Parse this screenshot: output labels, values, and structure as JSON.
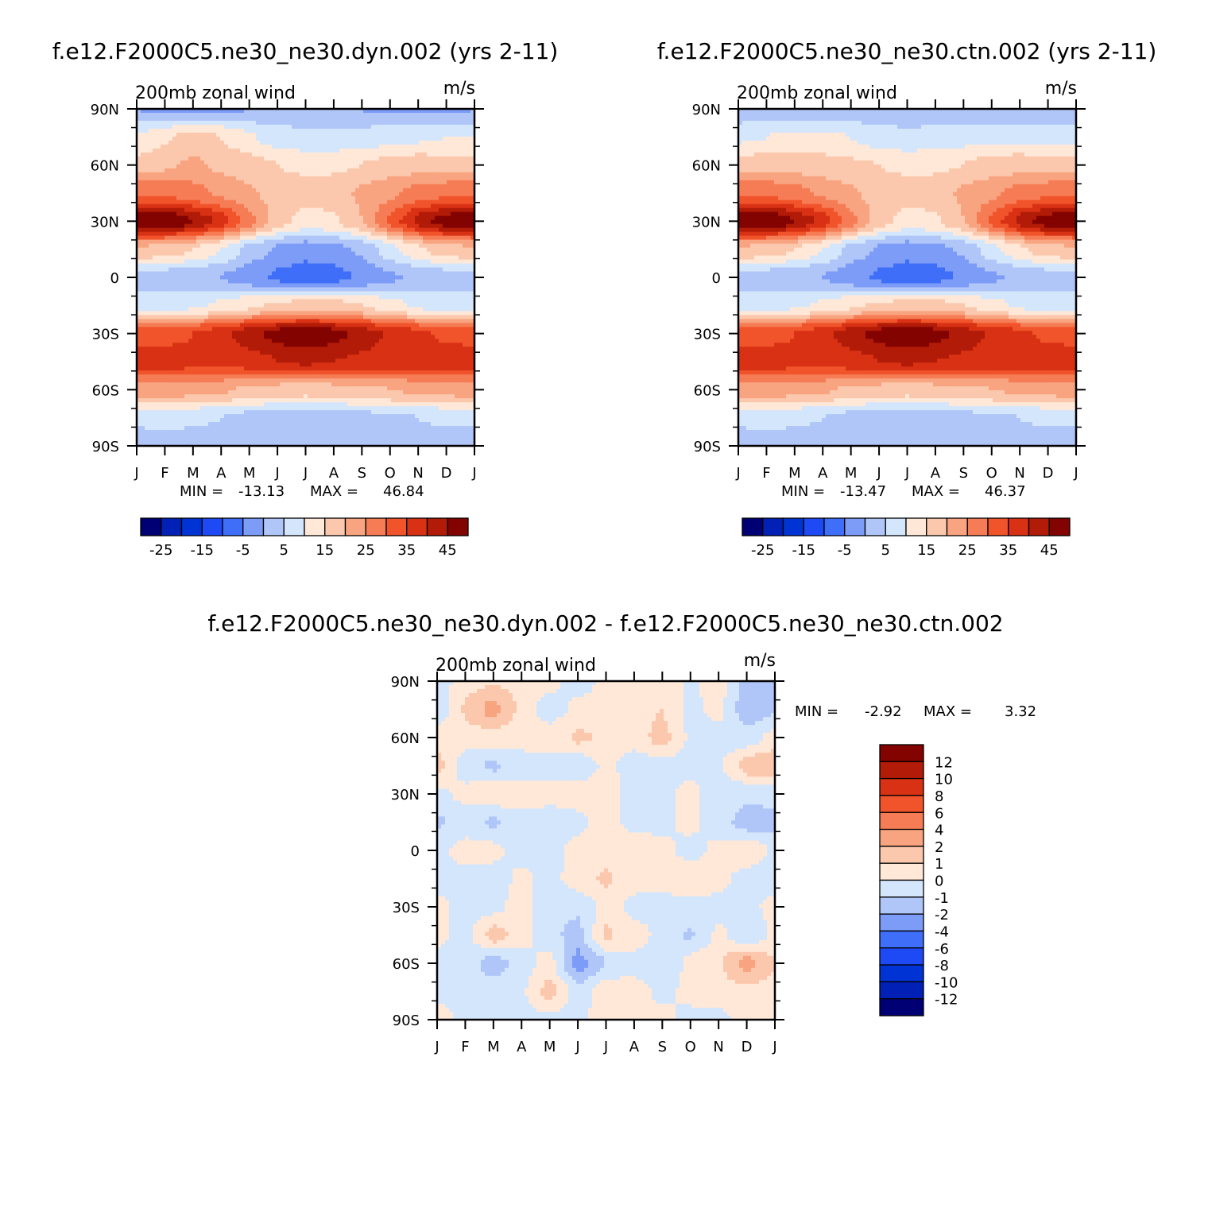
{
  "chart_data": [
    {
      "type": "heatmap",
      "title": "f.e12.F2000C5.ne30_ne30.dyn.002 (yrs 2-11)",
      "subtitle_left": "200mb zonal wind",
      "subtitle_right": "m/s",
      "x_ticks": [
        "J",
        "F",
        "M",
        "A",
        "M",
        "J",
        "J",
        "A",
        "S",
        "O",
        "N",
        "D",
        "J"
      ],
      "y_ticks": [
        "90N",
        "60N",
        "30N",
        "0",
        "30S",
        "60S",
        "90S"
      ],
      "min_label": "MIN =",
      "min_value": "-13.13",
      "max_label": "MAX =",
      "max_value": "46.84",
      "legend_labels": [
        "-25",
        "-15",
        "-5",
        "5",
        "15",
        "25",
        "35",
        "45"
      ],
      "bands": [
        {
          "lat": 90,
          "values": [
            -5,
            -6,
            -7,
            -6,
            -5,
            -4,
            -3,
            -4,
            -5,
            -6,
            -6,
            -6,
            -5
          ]
        },
        {
          "lat": 75,
          "values": [
            5,
            9,
            12,
            10,
            6,
            2,
            1,
            1,
            2,
            3,
            4,
            5,
            5
          ]
        },
        {
          "lat": 60,
          "values": [
            12,
            14,
            16,
            14,
            12,
            10,
            9,
            9,
            10,
            12,
            13,
            12,
            12
          ]
        },
        {
          "lat": 45,
          "values": [
            25,
            24,
            22,
            19,
            16,
            13,
            12,
            13,
            16,
            19,
            22,
            24,
            25
          ]
        },
        {
          "lat": 30,
          "values": [
            44,
            46,
            40,
            33,
            22,
            12,
            8,
            9,
            15,
            26,
            37,
            43,
            44
          ]
        },
        {
          "lat": 15,
          "values": [
            14,
            13,
            10,
            5,
            -2,
            -6,
            -8,
            -7,
            -4,
            3,
            9,
            13,
            14
          ]
        },
        {
          "lat": 0,
          "values": [
            -3,
            -3,
            -4,
            -5,
            -8,
            -11,
            -13,
            -12,
            -9,
            -6,
            -4,
            -3,
            -3
          ]
        },
        {
          "lat": -15,
          "values": [
            2,
            3,
            4,
            6,
            9,
            11,
            12,
            12,
            10,
            7,
            4,
            3,
            2
          ]
        },
        {
          "lat": -30,
          "values": [
            28,
            28,
            30,
            33,
            38,
            42,
            44,
            42,
            38,
            34,
            31,
            29,
            28
          ]
        },
        {
          "lat": -45,
          "values": [
            33,
            33,
            32,
            32,
            33,
            35,
            36,
            35,
            34,
            33,
            33,
            33,
            33
          ]
        },
        {
          "lat": -60,
          "values": [
            18,
            18,
            17,
            16,
            14,
            13,
            12,
            13,
            14,
            15,
            16,
            17,
            18
          ]
        },
        {
          "lat": -75,
          "values": [
            1,
            2,
            1,
            0,
            -2,
            -3,
            -3,
            -3,
            -2,
            -1,
            0,
            1,
            1
          ]
        },
        {
          "lat": -90,
          "values": [
            -3,
            -3,
            -3,
            -3,
            -3,
            -3,
            -3,
            -3,
            -3,
            -3,
            -3,
            -3,
            -3
          ]
        }
      ]
    },
    {
      "type": "heatmap",
      "title": "f.e12.F2000C5.ne30_ne30.ctn.002 (yrs 2-11)",
      "subtitle_left": "200mb zonal wind",
      "subtitle_right": "m/s",
      "x_ticks": [
        "J",
        "F",
        "M",
        "A",
        "M",
        "J",
        "J",
        "A",
        "S",
        "O",
        "N",
        "D",
        "J"
      ],
      "y_ticks": [
        "90N",
        "60N",
        "30N",
        "0",
        "30S",
        "60S",
        "90S"
      ],
      "min_label": "MIN =",
      "min_value": "-13.47",
      "max_label": "MAX =",
      "max_value": "46.37",
      "legend_labels": [
        "-25",
        "-15",
        "-5",
        "5",
        "15",
        "25",
        "35",
        "45"
      ],
      "bands": [
        {
          "lat": 90,
          "values": [
            -4,
            -4,
            -5,
            -5,
            -4,
            -3,
            -3,
            -4,
            -4,
            -5,
            -5,
            -5,
            -4
          ]
        },
        {
          "lat": 75,
          "values": [
            4,
            5,
            6,
            6,
            5,
            2,
            1,
            2,
            3,
            4,
            4,
            4,
            4
          ]
        },
        {
          "lat": 60,
          "values": [
            12,
            13,
            13,
            12,
            11,
            10,
            9,
            9,
            10,
            12,
            13,
            12,
            12
          ]
        },
        {
          "lat": 45,
          "values": [
            25,
            24,
            22,
            19,
            16,
            13,
            12,
            13,
            16,
            19,
            22,
            24,
            25
          ]
        },
        {
          "lat": 30,
          "values": [
            44,
            46,
            40,
            33,
            22,
            12,
            8,
            9,
            15,
            26,
            37,
            43,
            44
          ]
        },
        {
          "lat": 15,
          "values": [
            14,
            13,
            10,
            5,
            -2,
            -6,
            -8,
            -7,
            -4,
            3,
            9,
            13,
            14
          ]
        },
        {
          "lat": 0,
          "values": [
            -3,
            -3,
            -4,
            -5,
            -8,
            -11,
            -13,
            -12,
            -9,
            -6,
            -4,
            -3,
            -3
          ]
        },
        {
          "lat": -15,
          "values": [
            2,
            3,
            4,
            6,
            9,
            11,
            12,
            12,
            10,
            7,
            4,
            3,
            2
          ]
        },
        {
          "lat": -30,
          "values": [
            28,
            28,
            30,
            33,
            38,
            42,
            44,
            42,
            38,
            34,
            31,
            29,
            28
          ]
        },
        {
          "lat": -45,
          "values": [
            33,
            33,
            32,
            32,
            33,
            35,
            36,
            35,
            34,
            33,
            33,
            33,
            33
          ]
        },
        {
          "lat": -60,
          "values": [
            18,
            18,
            17,
            16,
            14,
            13,
            12,
            13,
            14,
            15,
            16,
            17,
            18
          ]
        },
        {
          "lat": -75,
          "values": [
            1,
            2,
            1,
            0,
            -2,
            -3,
            -3,
            -3,
            -2,
            -1,
            0,
            1,
            1
          ]
        },
        {
          "lat": -90,
          "values": [
            -3,
            -3,
            -3,
            -3,
            -3,
            -3,
            -3,
            -4,
            -5,
            -3,
            -3,
            -3,
            -3
          ]
        }
      ]
    },
    {
      "type": "heatmap",
      "title": "f.e12.F2000C5.ne30_ne30.dyn.002 - f.e12.F2000C5.ne30_ne30.ctn.002",
      "subtitle_left": "200mb zonal wind",
      "subtitle_right": "m/s",
      "x_ticks": [
        "J",
        "F",
        "M",
        "A",
        "M",
        "J",
        "J",
        "A",
        "S",
        "O",
        "N",
        "D",
        "J"
      ],
      "y_ticks": [
        "90N",
        "60N",
        "30N",
        "0",
        "30S",
        "60S",
        "90S"
      ],
      "min_label": "MIN =",
      "min_value": "-2.92",
      "max_label": "MAX =",
      "max_value": "3.32",
      "legend_labels": [
        "12",
        "10",
        "8",
        "6",
        "4",
        "2",
        "1",
        "0",
        "-1",
        "-2",
        "-4",
        "-6",
        "-8",
        "-10",
        "-12"
      ],
      "bands": [
        {
          "lat": 90,
          "values": [
            -0.5,
            0.5,
            1,
            0.5,
            0.3,
            -0.5,
            0.3,
            0.5,
            0.8,
            -0.3,
            0.8,
            -1.5,
            -1
          ]
        },
        {
          "lat": 75,
          "values": [
            -0.8,
            1.2,
            2.5,
            0.6,
            -0.5,
            0.3,
            0.4,
            0.8,
            1,
            -0.4,
            0.4,
            -1.8,
            -1
          ]
        },
        {
          "lat": 60,
          "values": [
            0.4,
            0.5,
            0.6,
            0.3,
            0.5,
            1.2,
            0.8,
            0.4,
            1.5,
            -0.3,
            -0.5,
            -0.6,
            0.4
          ]
        },
        {
          "lat": 45,
          "values": [
            1.5,
            -0.6,
            -1.2,
            -0.4,
            -0.3,
            -0.8,
            0.3,
            -0.5,
            -0.4,
            -0.3,
            -0.3,
            1.5,
            2
          ]
        },
        {
          "lat": 30,
          "values": [
            -0.3,
            0.3,
            0.8,
            0.5,
            0.3,
            0.5,
            0.6,
            -0.5,
            -0.3,
            0.3,
            -0.5,
            -0.7,
            -0.8
          ]
        },
        {
          "lat": 15,
          "values": [
            -1.2,
            -0.5,
            -1.2,
            -0.4,
            -0.5,
            -0.3,
            0.5,
            -0.4,
            -0.3,
            0.3,
            -0.5,
            -1.5,
            -1.2
          ]
        },
        {
          "lat": 0,
          "values": [
            -0.3,
            0.4,
            0.3,
            -0.5,
            -0.3,
            0.3,
            0.5,
            0.8,
            0.3,
            -0.4,
            0.3,
            0.8,
            -0.3
          ]
        },
        {
          "lat": -15,
          "values": [
            -0.5,
            -0.3,
            -0.5,
            0.3,
            -0.4,
            0.5,
            1.2,
            0.4,
            0.3,
            1,
            0.3,
            -0.4,
            -0.5
          ]
        },
        {
          "lat": -30,
          "values": [
            0.3,
            -0.4,
            -0.3,
            0.4,
            -0.5,
            -0.8,
            0.4,
            -0.3,
            -0.5,
            -0.3,
            -0.4,
            -0.3,
            0.3
          ]
        },
        {
          "lat": -45,
          "values": [
            0.3,
            -0.5,
            1.5,
            0.5,
            -0.6,
            -1.5,
            1.2,
            0.5,
            -0.4,
            -1.2,
            0.3,
            -0.8,
            0.3
          ]
        },
        {
          "lat": -60,
          "values": [
            -0.3,
            -0.4,
            -1.5,
            -0.5,
            0.5,
            -2.5,
            -1,
            -0.3,
            -1,
            0.4,
            0.8,
            2.5,
            1
          ]
        },
        {
          "lat": -75,
          "values": [
            -0.3,
            -0.5,
            -0.6,
            -0.3,
            1.5,
            -0.8,
            0.8,
            0.4,
            -0.3,
            0.3,
            0.5,
            0.8,
            0.5
          ]
        },
        {
          "lat": -90,
          "values": [
            0.5,
            -0.3,
            -0.3,
            -0.3,
            -0.3,
            -0.3,
            0.5,
            0.5,
            0.3,
            -0.3,
            -0.3,
            0.3,
            0.4
          ]
        }
      ]
    }
  ],
  "colors": {
    "abs_scale": [
      "#000074",
      "#0020b6",
      "#0033d4",
      "#1e4af5",
      "#3f6ef9",
      "#7c9cf7",
      "#b0c6f8",
      "#d4e6fc",
      "#ffe8d8",
      "#fbc8ad",
      "#f9a480",
      "#f67c55",
      "#f1542b",
      "#d93114",
      "#b11b07",
      "#820300"
    ],
    "diff_scale": [
      "#000074",
      "#0020b6",
      "#0033d4",
      "#1e4af5",
      "#3f6ef9",
      "#7c9cf7",
      "#b0c6f8",
      "#d4e6fc",
      "#ffe8d8",
      "#fbc8ad",
      "#f9a480",
      "#f67c55",
      "#f1542b",
      "#d93114",
      "#b11b07",
      "#820300"
    ]
  }
}
